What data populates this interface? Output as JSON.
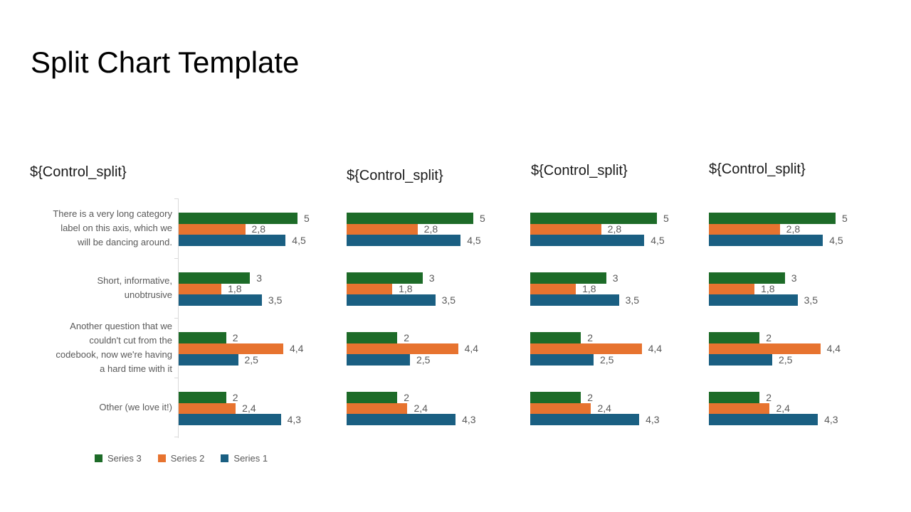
{
  "slide": {
    "title": "Split Chart Template"
  },
  "charts": [
    {
      "title": "${Control_split}"
    },
    {
      "title": "${Control_split}"
    },
    {
      "title": "${Control_split}"
    },
    {
      "title": "${Control_split}"
    }
  ],
  "chart_data": {
    "type": "bar",
    "orientation": "horizontal",
    "title": "${Control_split}",
    "xlabel": "",
    "ylabel": "",
    "xlim": [
      0,
      5
    ],
    "grid": false,
    "legend_position": "bottom",
    "panels_repeated": 4,
    "categories": [
      "There is a very long category\nlabel on this axis, which we\nwill be dancing around.",
      "Short, informative,\nunobtrusive",
      "Another question that we\ncouldn't cut from the\ncodebook, now we're having\na hard time with it",
      "Other (we love it!)"
    ],
    "series": [
      {
        "name": "Series 3",
        "color": "#1d6b28",
        "values": [
          5,
          3,
          2,
          2
        ],
        "value_labels": [
          "5",
          "3",
          "2",
          "2"
        ]
      },
      {
        "name": "Series 2",
        "color": "#e7732f",
        "values": [
          2.8,
          1.8,
          4.4,
          2.4
        ],
        "value_labels": [
          "2,8",
          "1,8",
          "4,4",
          "2,4"
        ]
      },
      {
        "name": "Series 1",
        "color": "#1a5f82",
        "values": [
          4.5,
          3.5,
          2.5,
          4.3
        ],
        "value_labels": [
          "4,5",
          "3,5",
          "2,5",
          "4,3"
        ]
      }
    ],
    "legend": [
      {
        "label": "Series 3",
        "color": "#1d6b28"
      },
      {
        "label": "Series 2",
        "color": "#e7732f"
      },
      {
        "label": "Series 1",
        "color": "#1a5f82"
      }
    ],
    "colors": {
      "axis_line": "#d9d9d9",
      "label_text": "#595959",
      "title_text": "#1a1a1a"
    }
  }
}
